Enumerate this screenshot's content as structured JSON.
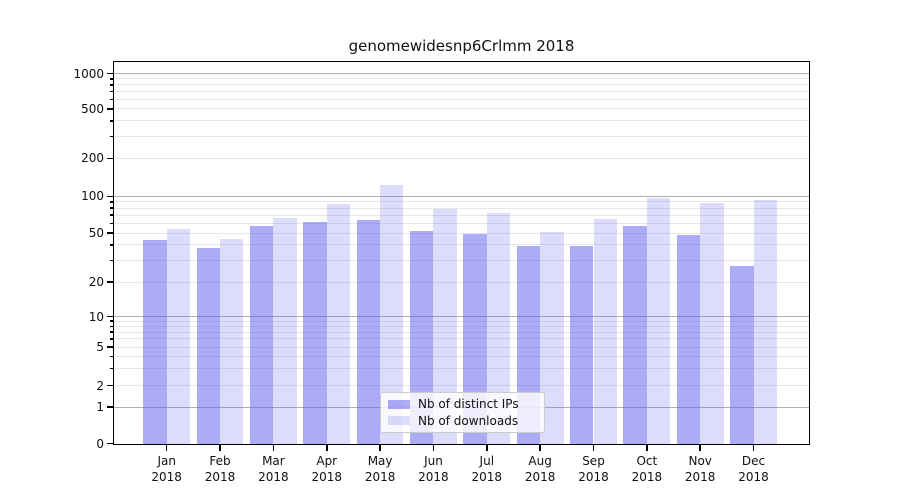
{
  "title": "genomewidesnp6Crlmm 2018",
  "chart_data": {
    "type": "bar",
    "title": "genomewidesnp6Crlmm 2018",
    "categories": [
      "Jan",
      "Feb",
      "Mar",
      "Apr",
      "May",
      "Jun",
      "Jul",
      "Aug",
      "Sep",
      "Oct",
      "Nov",
      "Dec"
    ],
    "year_label": "2018",
    "series": [
      {
        "name": "Nb of distinct IPs",
        "color": "#6666ee",
        "alpha": 0.55,
        "values": [
          44,
          38,
          57,
          61,
          64,
          52,
          49,
          39,
          39,
          57,
          48,
          27
        ]
      },
      {
        "name": "Nb of downloads",
        "color": "#6666ee",
        "alpha": 0.22,
        "values": [
          54,
          45,
          66,
          87,
          122,
          79,
          73,
          51,
          65,
          97,
          88,
          93
        ]
      }
    ],
    "yscale": "symlog",
    "yticks": [
      0,
      1,
      2,
      5,
      10,
      20,
      50,
      100,
      200,
      500,
      1000
    ],
    "ylim": [
      0,
      1250
    ],
    "xlabel": "",
    "ylabel": "",
    "grid": true,
    "legend_position": "lower center",
    "colors": {
      "major_gridline": "#b0b0b0",
      "minor_gridline": "#e7e7e7",
      "spine": "#000000",
      "text": "#111111"
    }
  },
  "legend": {
    "items": [
      {
        "label": "Nb of distinct IPs"
      },
      {
        "label": "Nb of downloads"
      }
    ]
  }
}
